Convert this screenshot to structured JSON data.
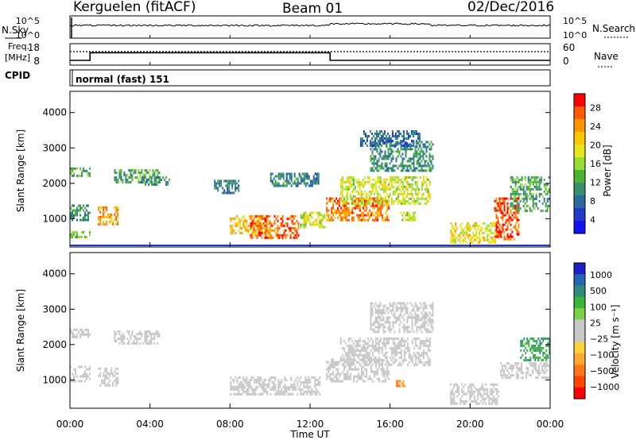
{
  "header": {
    "station": "Kerguelen (fitACF)",
    "beam": "Beam 01",
    "date": "02/Dec/2016"
  },
  "top_panels": {
    "nsky_label": "N.Sky",
    "nsearch_label": "N.Search",
    "noise_ticks": [
      "10^5",
      "10^0"
    ],
    "freq_label_line1": "Freq.",
    "freq_label_line2": "[MHz]",
    "freq_ticks": [
      "18",
      "8"
    ],
    "nave_label": "Nave",
    "nave_ticks": [
      "60",
      "0"
    ],
    "cpid_label": "CPID",
    "cpid_text": "normal (fast) 151"
  },
  "power_colorbar": {
    "title": "Power [dB]",
    "ticks": [
      "28",
      "24",
      "20",
      "16",
      "12",
      "8",
      "4"
    ],
    "colors": [
      "#ff0000",
      "#ff5a00",
      "#ff9600",
      "#ffc800",
      "#e6e61e",
      "#96dc32",
      "#4bb432",
      "#37906e",
      "#2a6aa0",
      "#1f3cc8",
      "#1010f0"
    ]
  },
  "velocity_colorbar": {
    "title": "Velocity [m s⁻¹]",
    "ticks": [
      "1000",
      "500",
      "100",
      "25",
      "−25",
      "−100",
      "−500",
      "−1000"
    ],
    "colors": [
      "#1e1ec8",
      "#2864b4",
      "#2f8c78",
      "#3cb43c",
      "#78d246",
      "#c8c8c8",
      "#c8c8c8",
      "#ffd23c",
      "#ffaa32",
      "#ff7814",
      "#ff4600",
      "#ff0000"
    ]
  },
  "x_axis": {
    "label": "Time UT",
    "ticks": [
      "00:00",
      "04:00",
      "08:00",
      "12:00",
      "16:00",
      "20:00",
      "00:00"
    ]
  },
  "y_axis": {
    "label": "Slant Range [km]",
    "ticks": [
      "4000",
      "3000",
      "2000",
      "1000"
    ]
  },
  "chart_data": [
    {
      "type": "heatmap",
      "title": "Power",
      "ylabel": "Slant Range [km]",
      "xlabel": "Time UT",
      "xlim_hours": [
        0,
        24
      ],
      "ylim_km": [
        200,
        4600
      ],
      "colorbar": {
        "label": "Power [dB]",
        "range": [
          0,
          32
        ]
      },
      "echo_regions": [
        {
          "t0": 0.0,
          "t1": 1.0,
          "r0": 2150,
          "r1": 2450,
          "value": 12
        },
        {
          "t0": 0.0,
          "t1": 1.0,
          "r0": 900,
          "r1": 1400,
          "value": 10
        },
        {
          "t0": 0.0,
          "t1": 1.0,
          "r0": 450,
          "r1": 650,
          "value": 14
        },
        {
          "t0": 1.4,
          "t1": 2.4,
          "r0": 800,
          "r1": 1350,
          "value": 24
        },
        {
          "t0": 2.2,
          "t1": 4.5,
          "r0": 2000,
          "r1": 2400,
          "value": 12
        },
        {
          "t0": 3.5,
          "t1": 5.0,
          "r0": 1900,
          "r1": 2200,
          "value": 10
        },
        {
          "t0": 7.2,
          "t1": 8.5,
          "r0": 1700,
          "r1": 2100,
          "value": 9
        },
        {
          "t0": 8.0,
          "t1": 10.0,
          "r0": 550,
          "r1": 1100,
          "value": 22
        },
        {
          "t0": 9.0,
          "t1": 11.5,
          "r0": 450,
          "r1": 1100,
          "value": 27
        },
        {
          "t0": 10.0,
          "t1": 12.5,
          "r0": 1900,
          "r1": 2300,
          "value": 9
        },
        {
          "t0": 11.5,
          "t1": 12.8,
          "r0": 700,
          "r1": 1200,
          "value": 18
        },
        {
          "t0": 12.8,
          "t1": 16.0,
          "r0": 900,
          "r1": 1600,
          "value": 26
        },
        {
          "t0": 13.5,
          "t1": 18.0,
          "r0": 1400,
          "r1": 2200,
          "value": 18
        },
        {
          "t0": 15.0,
          "t1": 18.2,
          "r0": 2300,
          "r1": 3200,
          "value": 10
        },
        {
          "t0": 14.5,
          "t1": 17.5,
          "r0": 3000,
          "r1": 3500,
          "value": 7
        },
        {
          "t0": 16.5,
          "t1": 17.3,
          "r0": 900,
          "r1": 1200,
          "value": 18
        },
        {
          "t0": 19.0,
          "t1": 21.5,
          "r0": 300,
          "r1": 900,
          "value": 20
        },
        {
          "t0": 21.2,
          "t1": 22.5,
          "r0": 400,
          "r1": 1600,
          "value": 28
        },
        {
          "t0": 22.0,
          "t1": 24.0,
          "r0": 1200,
          "r1": 2200,
          "value": 12
        }
      ]
    },
    {
      "type": "heatmap",
      "title": "Velocity",
      "ylabel": "Slant Range [km]",
      "xlabel": "Time UT",
      "xlim_hours": [
        0,
        24
      ],
      "ylim_km": [
        200,
        4600
      ],
      "colorbar": {
        "label": "Velocity [m s⁻¹]",
        "range": [
          -1000,
          1000
        ]
      },
      "echo_regions": [
        {
          "t0": 0.0,
          "t1": 1.0,
          "r0": 2150,
          "r1": 2450,
          "value": 0
        },
        {
          "t0": 0.0,
          "t1": 1.0,
          "r0": 900,
          "r1": 1400,
          "value": 0
        },
        {
          "t0": 1.4,
          "t1": 2.4,
          "r0": 800,
          "r1": 1350,
          "value": -100
        },
        {
          "t0": 2.2,
          "t1": 4.5,
          "r0": 2000,
          "r1": 2400,
          "value": 0
        },
        {
          "t0": 8.0,
          "t1": 12.5,
          "r0": 550,
          "r1": 1100,
          "value": 0
        },
        {
          "t0": 12.8,
          "t1": 16.0,
          "r0": 900,
          "r1": 1600,
          "value": 0
        },
        {
          "t0": 13.5,
          "t1": 18.0,
          "r0": 1400,
          "r1": 2200,
          "value": 0
        },
        {
          "t0": 15.0,
          "t1": 18.2,
          "r0": 2300,
          "r1": 3200,
          "value": 0
        },
        {
          "t0": 16.3,
          "t1": 16.8,
          "r0": 800,
          "r1": 1000,
          "value": -500
        },
        {
          "t0": 19.0,
          "t1": 21.5,
          "r0": 300,
          "r1": 900,
          "value": -100
        },
        {
          "t0": 21.5,
          "t1": 24.0,
          "r0": 1000,
          "r1": 1500,
          "value": 100
        },
        {
          "t0": 22.5,
          "t1": 24.0,
          "r0": 1500,
          "r1": 2200,
          "value": 500
        }
      ]
    }
  ],
  "frequency_series": {
    "hours": [
      0,
      1.0,
      1.0,
      13.0,
      13.0,
      24
    ],
    "mhz": [
      10.5,
      10.5,
      14.5,
      14.5,
      10.5,
      10.5
    ]
  }
}
